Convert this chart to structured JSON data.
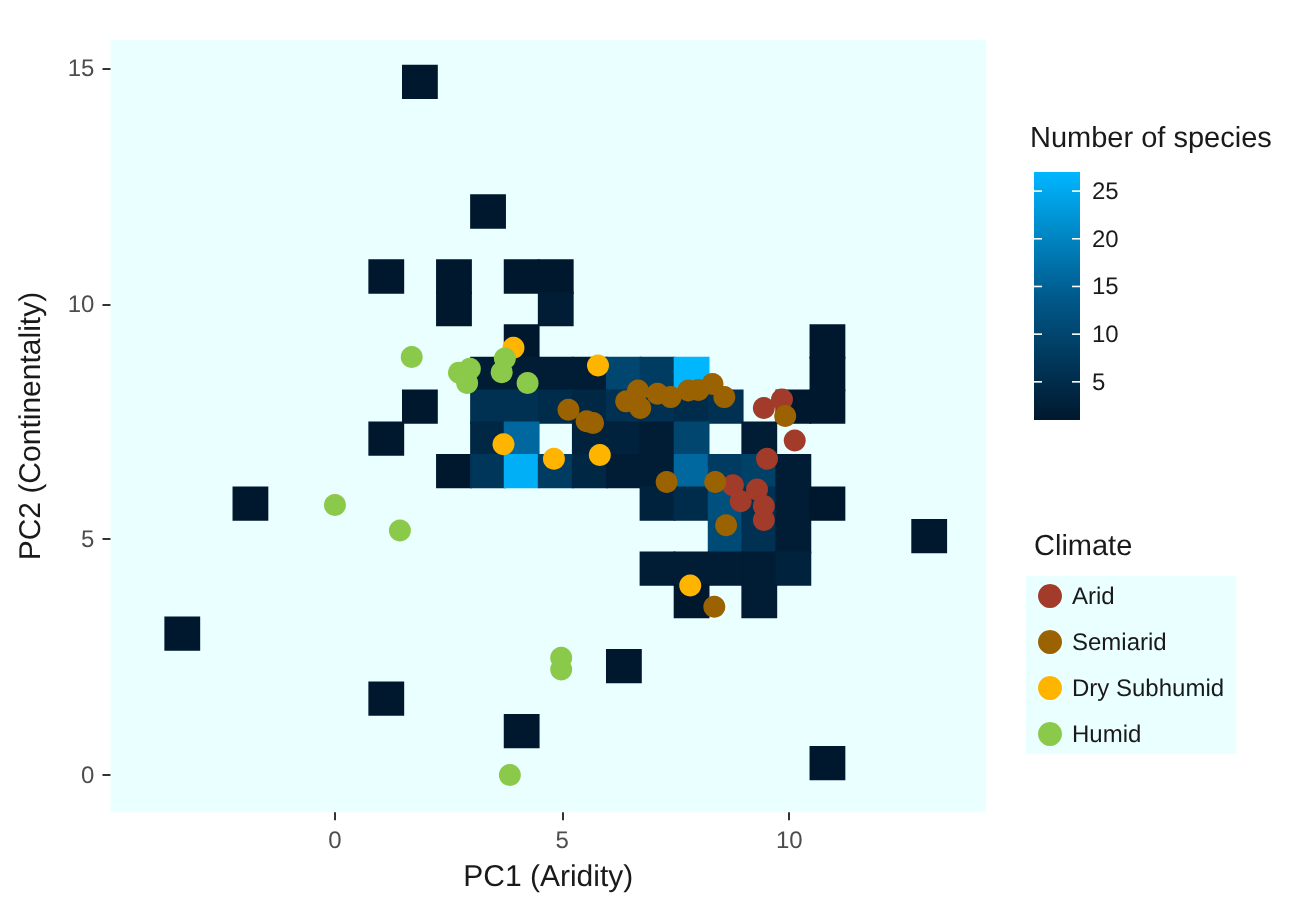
{
  "chart_data": {
    "type": "scatter",
    "xlabel": "PC1 (Aridity)",
    "ylabel": "PC2 (Continentality)",
    "legend_title": "Climate",
    "clabel": "Number of species",
    "xlim": [
      -4.94,
      14.33
    ],
    "ylim": [
      -0.79,
      15.6
    ],
    "xticks": [
      0,
      5,
      10
    ],
    "yticks": [
      0,
      5,
      10,
      15
    ],
    "clim": [
      1,
      27
    ],
    "cticks": [
      5,
      10,
      15,
      20,
      25
    ],
    "grid": false,
    "legend": "right",
    "marker": "circle",
    "series": [
      {
        "type": "scatter",
        "marker": "square",
        "colors": [
          "#00182e",
          "#00182e",
          "#00182e",
          "#00182e",
          "#001d35",
          "#00182e",
          "#00182e",
          "#001d35",
          "#001d35",
          "#001d35",
          "#001d35",
          "#00466f",
          "#003c61",
          "#00b6ff",
          "#00182e",
          "#00182e",
          "#003152",
          "#003152",
          "#002c4b",
          "#002744",
          "#003152",
          "#003152",
          "#002c4b",
          "#003152",
          "#00182e",
          "#00182e",
          "#002744",
          "#00689e",
          "#00223c",
          "#00223c",
          "#001d35",
          "#00466f",
          "#001d35",
          "#00182e",
          "#003659",
          "#00aff6",
          "#003c61",
          "#002744",
          "#001d35",
          "#001d35",
          "#00689e",
          "#003c61",
          "#004168",
          "#001d35",
          "#00223c",
          "#002c4b",
          "#00507d",
          "#003152",
          "#001d35",
          "#00182e",
          "#004b76",
          "#003152",
          "#001d35",
          "#00182e",
          "#001d35",
          "#001d35",
          "#001d35",
          "#001d35",
          "#00223c",
          "#00182e",
          "#001d35",
          "#00182e",
          "#00182e",
          "#00182e",
          "#00182e",
          "#00182e",
          "#00182e",
          "#00182e",
          "#00182e",
          "#00182e",
          "#00182e"
        ],
        "x": [
          2.62,
          4.11,
          4.86,
          2.62,
          4.86,
          4.11,
          10.84,
          3.37,
          4.11,
          4.86,
          5.61,
          6.36,
          7.1,
          7.85,
          10.84,
          1.87,
          3.37,
          4.11,
          4.86,
          5.61,
          6.36,
          7.1,
          7.85,
          8.6,
          10.09,
          10.84,
          3.37,
          4.11,
          5.61,
          6.36,
          7.1,
          7.85,
          9.34,
          2.62,
          3.37,
          4.11,
          4.86,
          5.61,
          6.36,
          7.1,
          7.85,
          8.6,
          9.34,
          10.09,
          7.1,
          7.85,
          8.6,
          9.34,
          10.09,
          10.84,
          8.6,
          9.34,
          10.09,
          13.08,
          7.1,
          7.85,
          8.6,
          9.34,
          10.09,
          7.85,
          9.34,
          1.87,
          3.37,
          1.13,
          1.13,
          -1.86,
          -3.36,
          1.13,
          4.11,
          6.36,
          10.84
        ],
        "values": [
          10.58,
          10.58,
          10.58,
          9.89,
          9.89,
          9.2,
          9.2,
          8.51,
          8.51,
          8.51,
          8.51,
          8.51,
          8.51,
          8.51,
          8.51,
          7.82,
          7.82,
          7.82,
          7.82,
          7.82,
          7.82,
          7.82,
          7.82,
          7.82,
          7.82,
          7.82,
          7.14,
          7.14,
          7.14,
          7.14,
          7.14,
          7.14,
          7.14,
          6.45,
          6.45,
          6.45,
          6.45,
          6.45,
          6.45,
          6.45,
          6.45,
          6.45,
          6.45,
          6.45,
          5.76,
          5.76,
          5.76,
          5.76,
          5.76,
          5.76,
          5.07,
          5.07,
          5.07,
          5.07,
          4.38,
          4.38,
          4.38,
          4.38,
          4.38,
          3.69,
          3.69,
          14.71,
          11.96,
          10.58,
          7.14,
          5.76,
          3.0,
          1.62,
          0.93,
          2.31,
          0.25
        ],
        "cvalues": [
          1,
          1,
          1,
          1,
          2,
          1,
          1,
          2,
          2,
          2,
          2,
          10,
          8,
          27,
          1,
          1,
          6,
          6,
          5,
          4,
          6,
          6,
          5,
          6,
          1,
          1,
          4,
          16,
          3,
          3,
          2,
          10,
          2,
          1,
          7,
          26,
          8,
          4,
          2,
          2,
          16,
          8,
          9,
          2,
          3,
          5,
          12,
          6,
          2,
          1,
          11,
          6,
          2,
          1,
          2,
          2,
          2,
          2,
          3,
          1,
          2,
          1,
          1,
          1,
          1,
          1,
          1,
          1,
          1,
          1,
          1
        ]
      },
      {
        "name": "Arid",
        "color": "#a23b2a",
        "x": [
          9.44,
          9.84,
          10.12,
          9.51,
          8.76,
          8.93,
          9.29,
          9.44,
          9.44
        ],
        "values": [
          7.79,
          7.97,
          7.1,
          6.71,
          6.15,
          5.81,
          6.06,
          5.71,
          5.41
        ]
      },
      {
        "name": "Semiarid",
        "color": "#9a6200",
        "x": [
          5.14,
          5.54,
          5.68,
          6.41,
          6.67,
          6.72,
          7.1,
          7.39,
          7.78,
          8.0,
          8.31,
          8.57,
          9.91,
          7.3,
          8.37,
          8.61,
          8.35
        ],
        "values": [
          7.75,
          7.51,
          7.47,
          7.93,
          8.16,
          7.79,
          8.09,
          8.02,
          8.16,
          8.17,
          8.3,
          8.02,
          7.62,
          6.22,
          6.22,
          5.3,
          3.57
        ]
      },
      {
        "name": "Dry Subhumid",
        "color": "#ffb400",
        "x": [
          3.93,
          5.79,
          3.71,
          4.82,
          5.83,
          7.82
        ],
        "values": [
          9.07,
          8.69,
          7.02,
          6.71,
          6.79,
          4.02
        ]
      },
      {
        "name": "Humid",
        "color": "#8bc94a",
        "x": [
          1.69,
          2.73,
          2.97,
          2.91,
          3.67,
          3.74,
          4.24,
          0,
          1.43,
          4.98,
          4.98,
          3.85
        ],
        "values": [
          8.87,
          8.54,
          8.62,
          8.32,
          8.55,
          8.84,
          8.32,
          5.73,
          5.19,
          2.49,
          2.24,
          0.0
        ]
      }
    ]
  }
}
